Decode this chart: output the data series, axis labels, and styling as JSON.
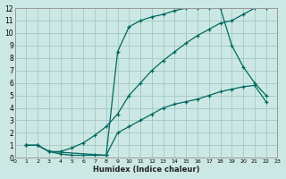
{
  "xlabel": "Humidex (Indice chaleur)",
  "ylabel": "",
  "background_color": "#cce8e4",
  "grid_color": "#a8ccc8",
  "line_color": "#006860",
  "xlim": [
    0,
    23
  ],
  "ylim": [
    0,
    12
  ],
  "xticks": [
    0,
    1,
    2,
    3,
    4,
    5,
    6,
    7,
    8,
    9,
    10,
    11,
    12,
    13,
    14,
    15,
    16,
    17,
    18,
    19,
    20,
    21,
    22,
    23
  ],
  "yticks": [
    0,
    1,
    2,
    3,
    4,
    5,
    6,
    7,
    8,
    9,
    10,
    11,
    12
  ],
  "lines": [
    {
      "x": [
        1,
        2,
        3,
        4,
        5,
        6,
        7,
        8,
        9,
        10,
        11,
        12,
        13,
        14,
        15,
        16,
        17,
        18,
        19,
        20,
        21,
        22
      ],
      "y": [
        1,
        1,
        0.5,
        0.3,
        0.2,
        0.2,
        0.2,
        0.2,
        2.0,
        2.5,
        3.0,
        3.5,
        4.0,
        4.3,
        4.5,
        4.7,
        5.0,
        5.3,
        5.5,
        5.7,
        5.8,
        4.5
      ]
    },
    {
      "x": [
        1,
        2,
        3,
        4,
        5,
        6,
        7,
        8,
        9,
        10,
        11,
        12,
        13,
        14,
        15,
        16,
        17,
        18,
        19,
        20,
        21,
        22
      ],
      "y": [
        1,
        1,
        0.5,
        0.5,
        0.8,
        1.2,
        1.8,
        2.5,
        3.5,
        5.0,
        6.0,
        7.0,
        7.8,
        8.5,
        9.2,
        9.8,
        10.3,
        10.8,
        11.0,
        11.5,
        12.0,
        12.0
      ]
    },
    {
      "x": [
        1,
        2,
        3,
        8,
        9,
        10,
        11,
        12,
        13,
        14,
        15,
        16,
        17,
        18,
        19,
        20,
        21,
        22
      ],
      "y": [
        1,
        1,
        0.5,
        0.2,
        8.5,
        10.5,
        11.0,
        11.3,
        11.5,
        11.8,
        12.0,
        12.0,
        12.0,
        12.0,
        9.0,
        7.3,
        6.0,
        5.0
      ]
    }
  ]
}
